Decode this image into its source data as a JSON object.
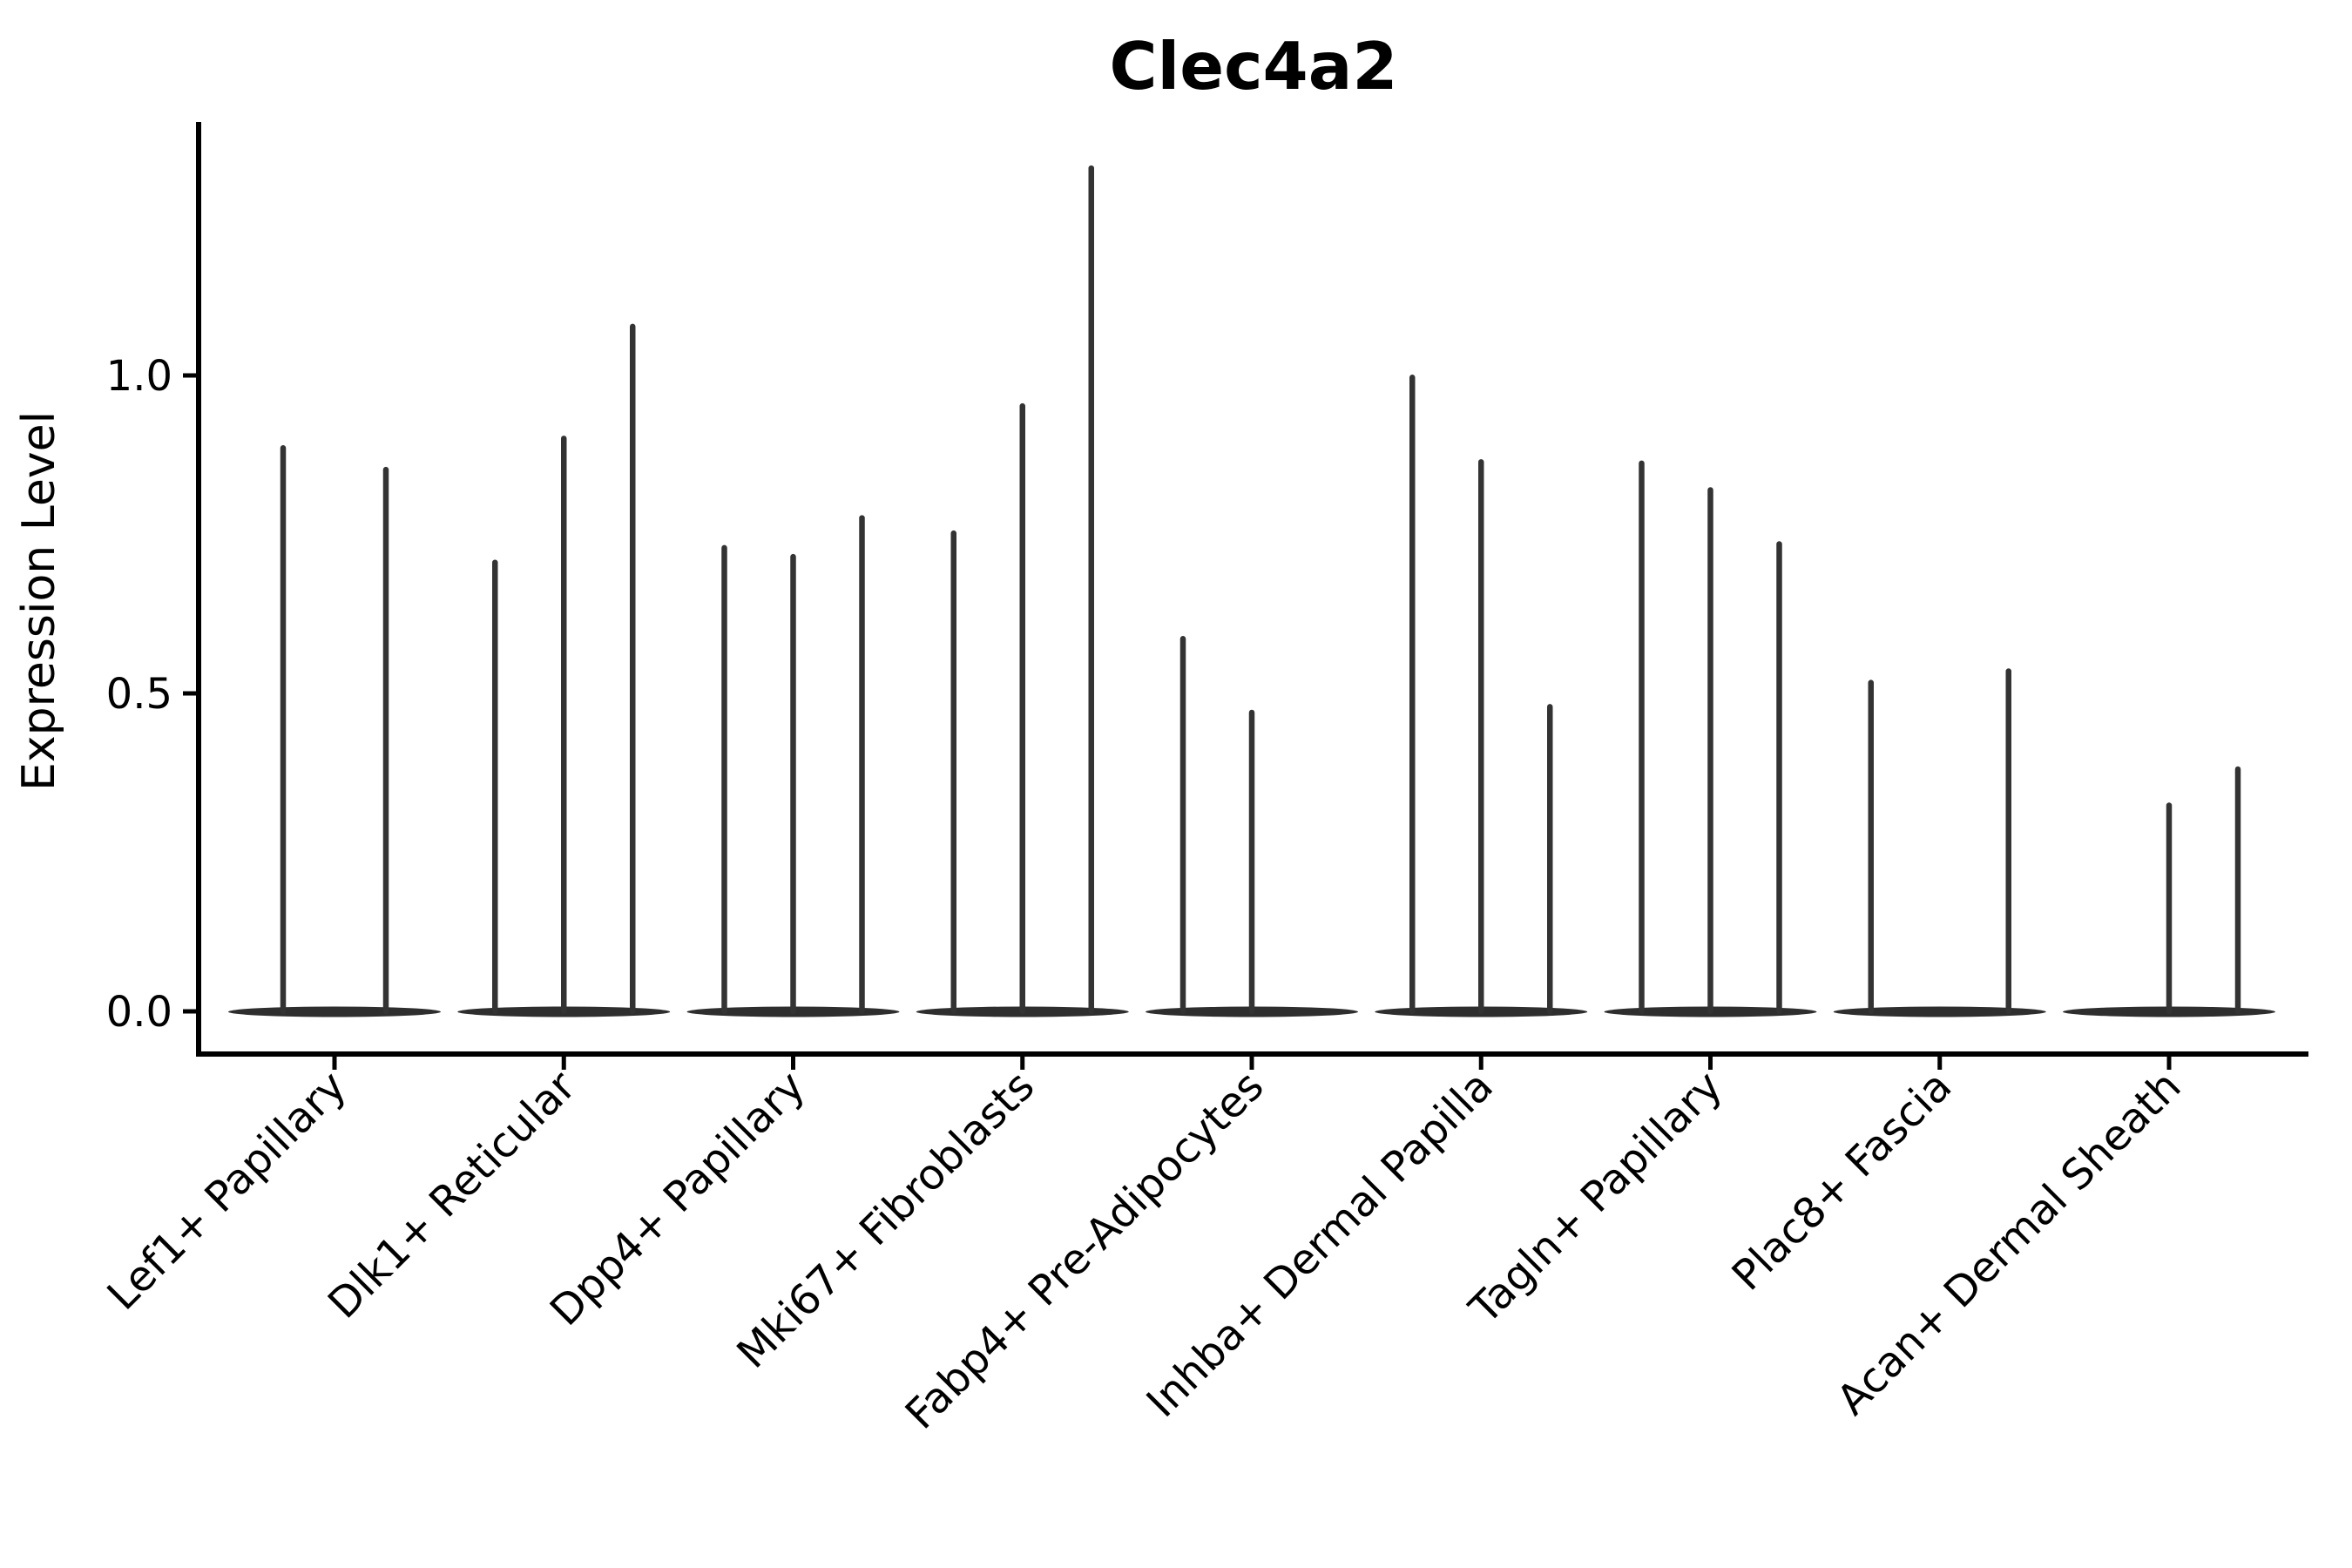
{
  "chart_data": {
    "type": "violin",
    "title": "Clec4a2",
    "xlabel": "",
    "ylabel": "Expression Level",
    "background_color": "#ffffff",
    "axis_color": "#000000",
    "violin_color": "#333333",
    "violin_base_color": "#2e2e2e",
    "grid": false,
    "legend": false,
    "ylim": [
      -0.07,
      1.4
    ],
    "yticks": [
      {
        "label": "0.0",
        "value": 0.0
      },
      {
        "label": "0.5",
        "value": 0.5
      },
      {
        "label": "1.0",
        "value": 1.0
      }
    ],
    "categories": [
      "Lef1+ Papillary",
      "Dlk1+ Reticular",
      "Dpp4+ Papillary",
      "Mki67+ Fibroblasts",
      "Fabp4+ Pre-Adipocytes",
      "Inhba+ Dermal Papilla",
      "Tagln+ Papillary",
      "Plac8+ Fascia",
      "Acan+ Dermal Sheath"
    ],
    "groups": [
      {
        "category": "Lef1+ Papillary",
        "violins": [
          {
            "offset": -59,
            "max": 0.89
          },
          {
            "offset": 59,
            "max": 0.856
          }
        ]
      },
      {
        "category": "Dlk1+ Reticular",
        "violins": [
          {
            "offset": -79,
            "max": 0.71
          },
          {
            "offset": 0,
            "max": 0.905
          },
          {
            "offset": 79,
            "max": 1.081
          }
        ]
      },
      {
        "category": "Dpp4+ Papillary",
        "violins": [
          {
            "offset": -79,
            "max": 0.733
          },
          {
            "offset": 0,
            "max": 0.719
          },
          {
            "offset": 79,
            "max": 0.78
          }
        ]
      },
      {
        "category": "Mki67+ Fibroblasts",
        "violins": [
          {
            "offset": -79,
            "max": 0.756
          },
          {
            "offset": 0,
            "max": 0.956
          },
          {
            "offset": 79,
            "max": 1.33
          }
        ]
      },
      {
        "category": "Fabp4+ Pre-Adipocytes",
        "violins": [
          {
            "offset": -79,
            "max": 0.59
          },
          {
            "offset": 0,
            "max": 0.474
          },
          {
            "offset": 79,
            "max": 0.0
          }
        ]
      },
      {
        "category": "Inhba+ Dermal Papilla",
        "violins": [
          {
            "offset": -79,
            "max": 1.001
          },
          {
            "offset": 0,
            "max": 0.868
          },
          {
            "offset": 79,
            "max": 0.483
          }
        ]
      },
      {
        "category": "Tagln+ Papillary",
        "violins": [
          {
            "offset": -79,
            "max": 0.866
          },
          {
            "offset": 0,
            "max": 0.824
          },
          {
            "offset": 79,
            "max": 0.739
          }
        ]
      },
      {
        "category": "Plac8+ Fascia",
        "violins": [
          {
            "offset": -79,
            "max": 0.521
          },
          {
            "offset": 0,
            "max": 0.0
          },
          {
            "offset": 79,
            "max": 0.539
          }
        ]
      },
      {
        "category": "Acan+ Dermal Sheath",
        "violins": [
          {
            "offset": -79,
            "max": 0.0
          },
          {
            "offset": 0,
            "max": 0.328
          },
          {
            "offset": 79,
            "max": 0.385
          }
        ]
      }
    ]
  }
}
